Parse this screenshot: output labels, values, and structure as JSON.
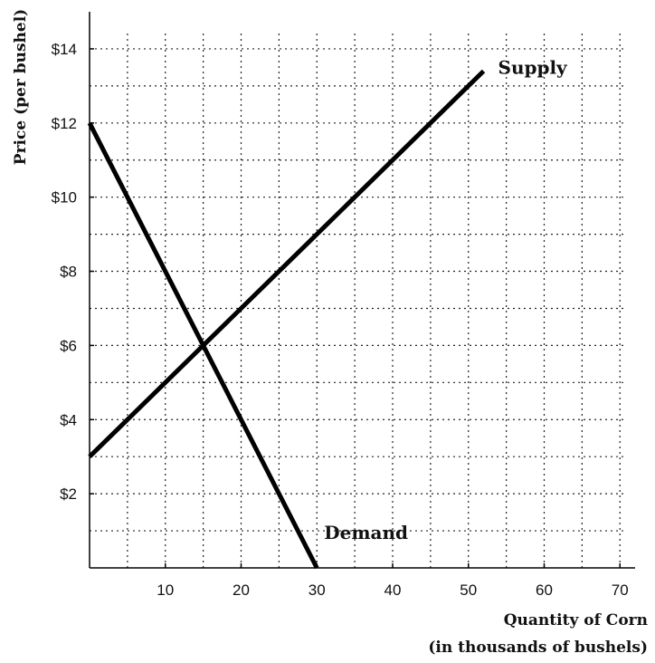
{
  "chart_data": {
    "type": "line",
    "title": "",
    "xlabel": [
      "Quantity of Corn",
      "(in thousands of bushels)"
    ],
    "ylabel": "Price (per bushel)",
    "xlim": [
      0,
      72
    ],
    "ylim": [
      0,
      15
    ],
    "x_ticks": [
      10,
      20,
      30,
      40,
      50,
      60,
      70
    ],
    "x_tick_labels": [
      "10",
      "20",
      "30",
      "40",
      "50",
      "60",
      "70"
    ],
    "y_ticks": [
      2,
      4,
      6,
      8,
      10,
      12,
      14
    ],
    "y_tick_labels": [
      "$2",
      "$4",
      "$6",
      "$8",
      "$10",
      "$12",
      "$14"
    ],
    "grid": true,
    "grid_style": "dotted",
    "x_grid_step": 5,
    "y_grid_step": 1,
    "series": [
      {
        "name": "Supply",
        "points": [
          [
            0,
            3
          ],
          [
            52,
            13.4
          ]
        ]
      },
      {
        "name": "Demand",
        "points": [
          [
            0,
            12
          ],
          [
            30,
            0
          ]
        ]
      }
    ]
  }
}
